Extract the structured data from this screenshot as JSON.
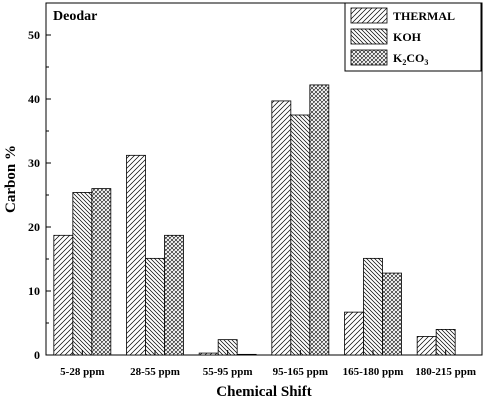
{
  "chart_data": {
    "type": "bar",
    "title": "Deodar",
    "xlabel": "Chemical Shift",
    "ylabel": "Carbon %",
    "ylim": [
      0,
      55
    ],
    "yticks": [
      0,
      10,
      20,
      30,
      40,
      50
    ],
    "grid": false,
    "legend_position": "top-right",
    "categories": [
      "5-28 ppm",
      "28-55 ppm",
      "55-95 ppm",
      "95-165 ppm",
      "165-180 ppm",
      "180-215 ppm"
    ],
    "series": [
      {
        "name": "THERMAL",
        "legend_main": "THERMAL",
        "legend_sub": "",
        "legend_tail": "",
        "pattern": "diag-forward",
        "values": [
          18.7,
          31.2,
          0.3,
          39.7,
          6.7,
          2.9
        ]
      },
      {
        "name": "KOH",
        "legend_main": "KOH",
        "legend_sub": "",
        "legend_tail": "",
        "pattern": "diag-back",
        "values": [
          25.4,
          15.1,
          2.4,
          37.5,
          15.1,
          4.0
        ]
      },
      {
        "name": "K2CO3",
        "legend_main": "K",
        "legend_sub": "2",
        "legend_tail": "CO",
        "legend_sub2": "3",
        "pattern": "crosshatch",
        "values": [
          26.0,
          18.7,
          0.1,
          42.2,
          12.8,
          0.0
        ]
      }
    ]
  }
}
